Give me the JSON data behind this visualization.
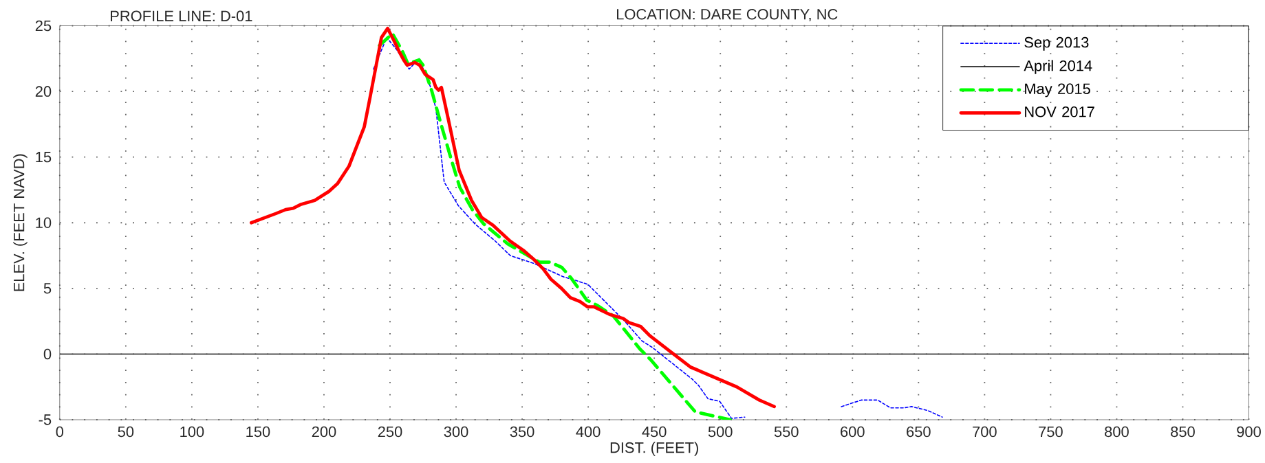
{
  "chart_data": {
    "type": "line",
    "title": "PROFILE LINE: D-01",
    "subtitle": "LOCATION: DARE COUNTY, NC",
    "xlabel": "DIST. (FEET)",
    "ylabel": "ELEV. (FEET NAVD)",
    "xlim": [
      0,
      900
    ],
    "ylim": [
      -5,
      25
    ],
    "xticks": [
      0,
      50,
      100,
      150,
      200,
      250,
      300,
      350,
      400,
      450,
      500,
      550,
      600,
      650,
      700,
      750,
      800,
      850,
      900
    ],
    "yticks": [
      -5,
      0,
      5,
      10,
      15,
      20,
      25
    ],
    "grid": true,
    "legend": "top right",
    "ref_lines": [
      {
        "axis": "y",
        "value": 0,
        "color": "#555555",
        "line_style": "solid"
      }
    ],
    "series": [
      {
        "name": "Sep 2013",
        "color": "#0000ff",
        "line_style": "dashed",
        "x": [
          237.5,
          247.5,
          254.9,
          264.5,
          272,
          280.4,
          284.7,
          291,
          301.7,
          314.4,
          329.7,
          341,
          359,
          380.8,
          390.8,
          399.8,
          420.7,
          426.7,
          440.7,
          448.6,
          478.6,
          483.6,
          490.6,
          499.5,
          508.5,
          518.5,
          555,
          591.6,
          606.8,
          619,
          628.8,
          638.6,
          644.7,
          657,
          668
        ],
        "values": [
          21.7,
          24.1,
          23.2,
          21.7,
          22.5,
          20.4,
          18.7,
          13.1,
          11.3,
          9.9,
          8.6,
          7.5,
          6.9,
          5.9,
          5.6,
          5.3,
          3.2,
          2.6,
          1.0,
          0.5,
          -1.9,
          -2.4,
          -3.4,
          -3.6,
          -4.9,
          -4.8,
          null,
          -4.0,
          -3.5,
          -3.5,
          -4.1,
          -4.1,
          -4.0,
          -4.3,
          -4.8
        ]
      },
      {
        "name": "April 2014",
        "color": "#000000",
        "line_style": "solid"
      },
      {
        "name": "May 2015",
        "color": "#00ff00",
        "line_style": "dashed",
        "x": [
          242,
          251.8,
          259.2,
          263.5,
          272,
          275,
          281.4,
          288.9,
          296.4,
          302.8,
          312.3,
          321,
          339,
          351,
          363,
          371,
          380,
          387,
          399,
          407,
          419,
          439,
          447,
          481,
          507.5
        ],
        "values": [
          23.5,
          24.4,
          23.1,
          22.1,
          22.4,
          22.0,
          20.1,
          17.4,
          14.8,
          12.7,
          11.0,
          9.9,
          8.4,
          7.7,
          7.0,
          7.0,
          6.6,
          5.8,
          4.1,
          3.7,
          2.9,
          0.4,
          -0.4,
          -4.4,
          -5.0
        ]
      },
      {
        "name": "NOV 2017",
        "color": "#ff0000",
        "line_style": "solid",
        "x": [
          145,
          163.6,
          171,
          176.8,
          182.7,
          193,
          204,
          210.4,
          218.9,
          230.5,
          234.8,
          240.1,
          243.5,
          248.2,
          252.8,
          257.1,
          260.3,
          263,
          268.8,
          272.4,
          276.6,
          282.6,
          284.7,
          286.8,
          288.9,
          294.3,
          302.3,
          311.7,
          319.4,
          328,
          340.9,
          350.9,
          358.9,
          365.8,
          371.8,
          379.8,
          386.4,
          393.8,
          399.4,
          404.3,
          416.7,
          426.7,
          430.7,
          439.7,
          446.6,
          464.6,
          477.6,
          512.5,
          529.5,
          540.8
        ],
        "values": [
          10.0,
          10.7,
          11.0,
          11.1,
          11.4,
          11.7,
          12.4,
          13.0,
          14.3,
          17.3,
          19.5,
          22.3,
          24.1,
          24.8,
          23.9,
          23.0,
          22.4,
          22.0,
          22.2,
          22.0,
          21.3,
          20.9,
          20.3,
          20.1,
          20.3,
          17.8,
          14.0,
          11.7,
          10.4,
          9.8,
          8.6,
          7.9,
          7.2,
          6.5,
          5.7,
          5.0,
          4.3,
          4.0,
          3.6,
          3.6,
          3.0,
          2.7,
          2.4,
          2.1,
          1.4,
          0,
          -1.0,
          -2.5,
          -3.5,
          -4.0
        ]
      }
    ]
  }
}
